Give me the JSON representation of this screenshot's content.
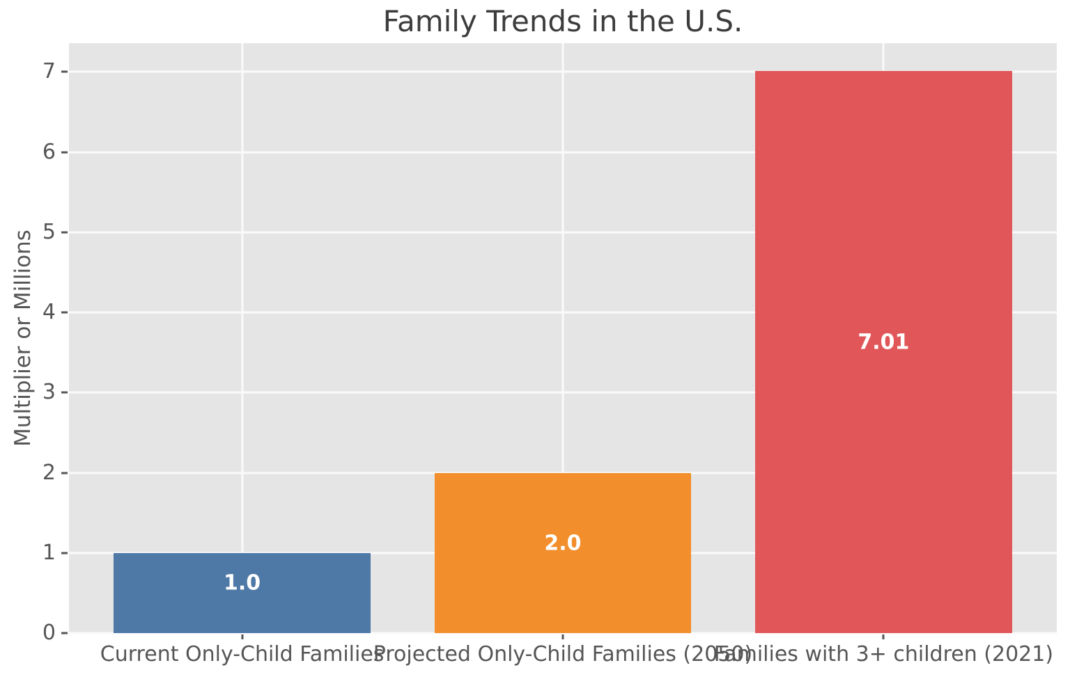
{
  "chart_data": {
    "type": "bar",
    "title": "Family Trends in the U.S.",
    "xlabel": "",
    "ylabel": "Multiplier or Millions",
    "categories": [
      "Current Only-Child Families",
      "Projected Only-Child Families (2050)",
      "Families with 3+ children (2021)"
    ],
    "values": [
      1.0,
      2.0,
      7.01
    ],
    "bar_value_labels": [
      "1.0",
      "2.0",
      "7.01"
    ],
    "bar_colors": [
      "#4e79a7",
      "#f28e2b",
      "#e15759"
    ],
    "yticks": [
      0,
      1,
      2,
      3,
      4,
      5,
      6,
      7
    ],
    "ylim": [
      0,
      7.36
    ],
    "xlim": [
      -0.54,
      2.54
    ],
    "bar_width": 0.8,
    "grid": true,
    "legend_position": "none",
    "plot_background": "#e5e5e5",
    "grid_color": "#fafafa",
    "tick_color": "#555555",
    "title_color": "#3c3c3c",
    "label_color": "#555555"
  }
}
